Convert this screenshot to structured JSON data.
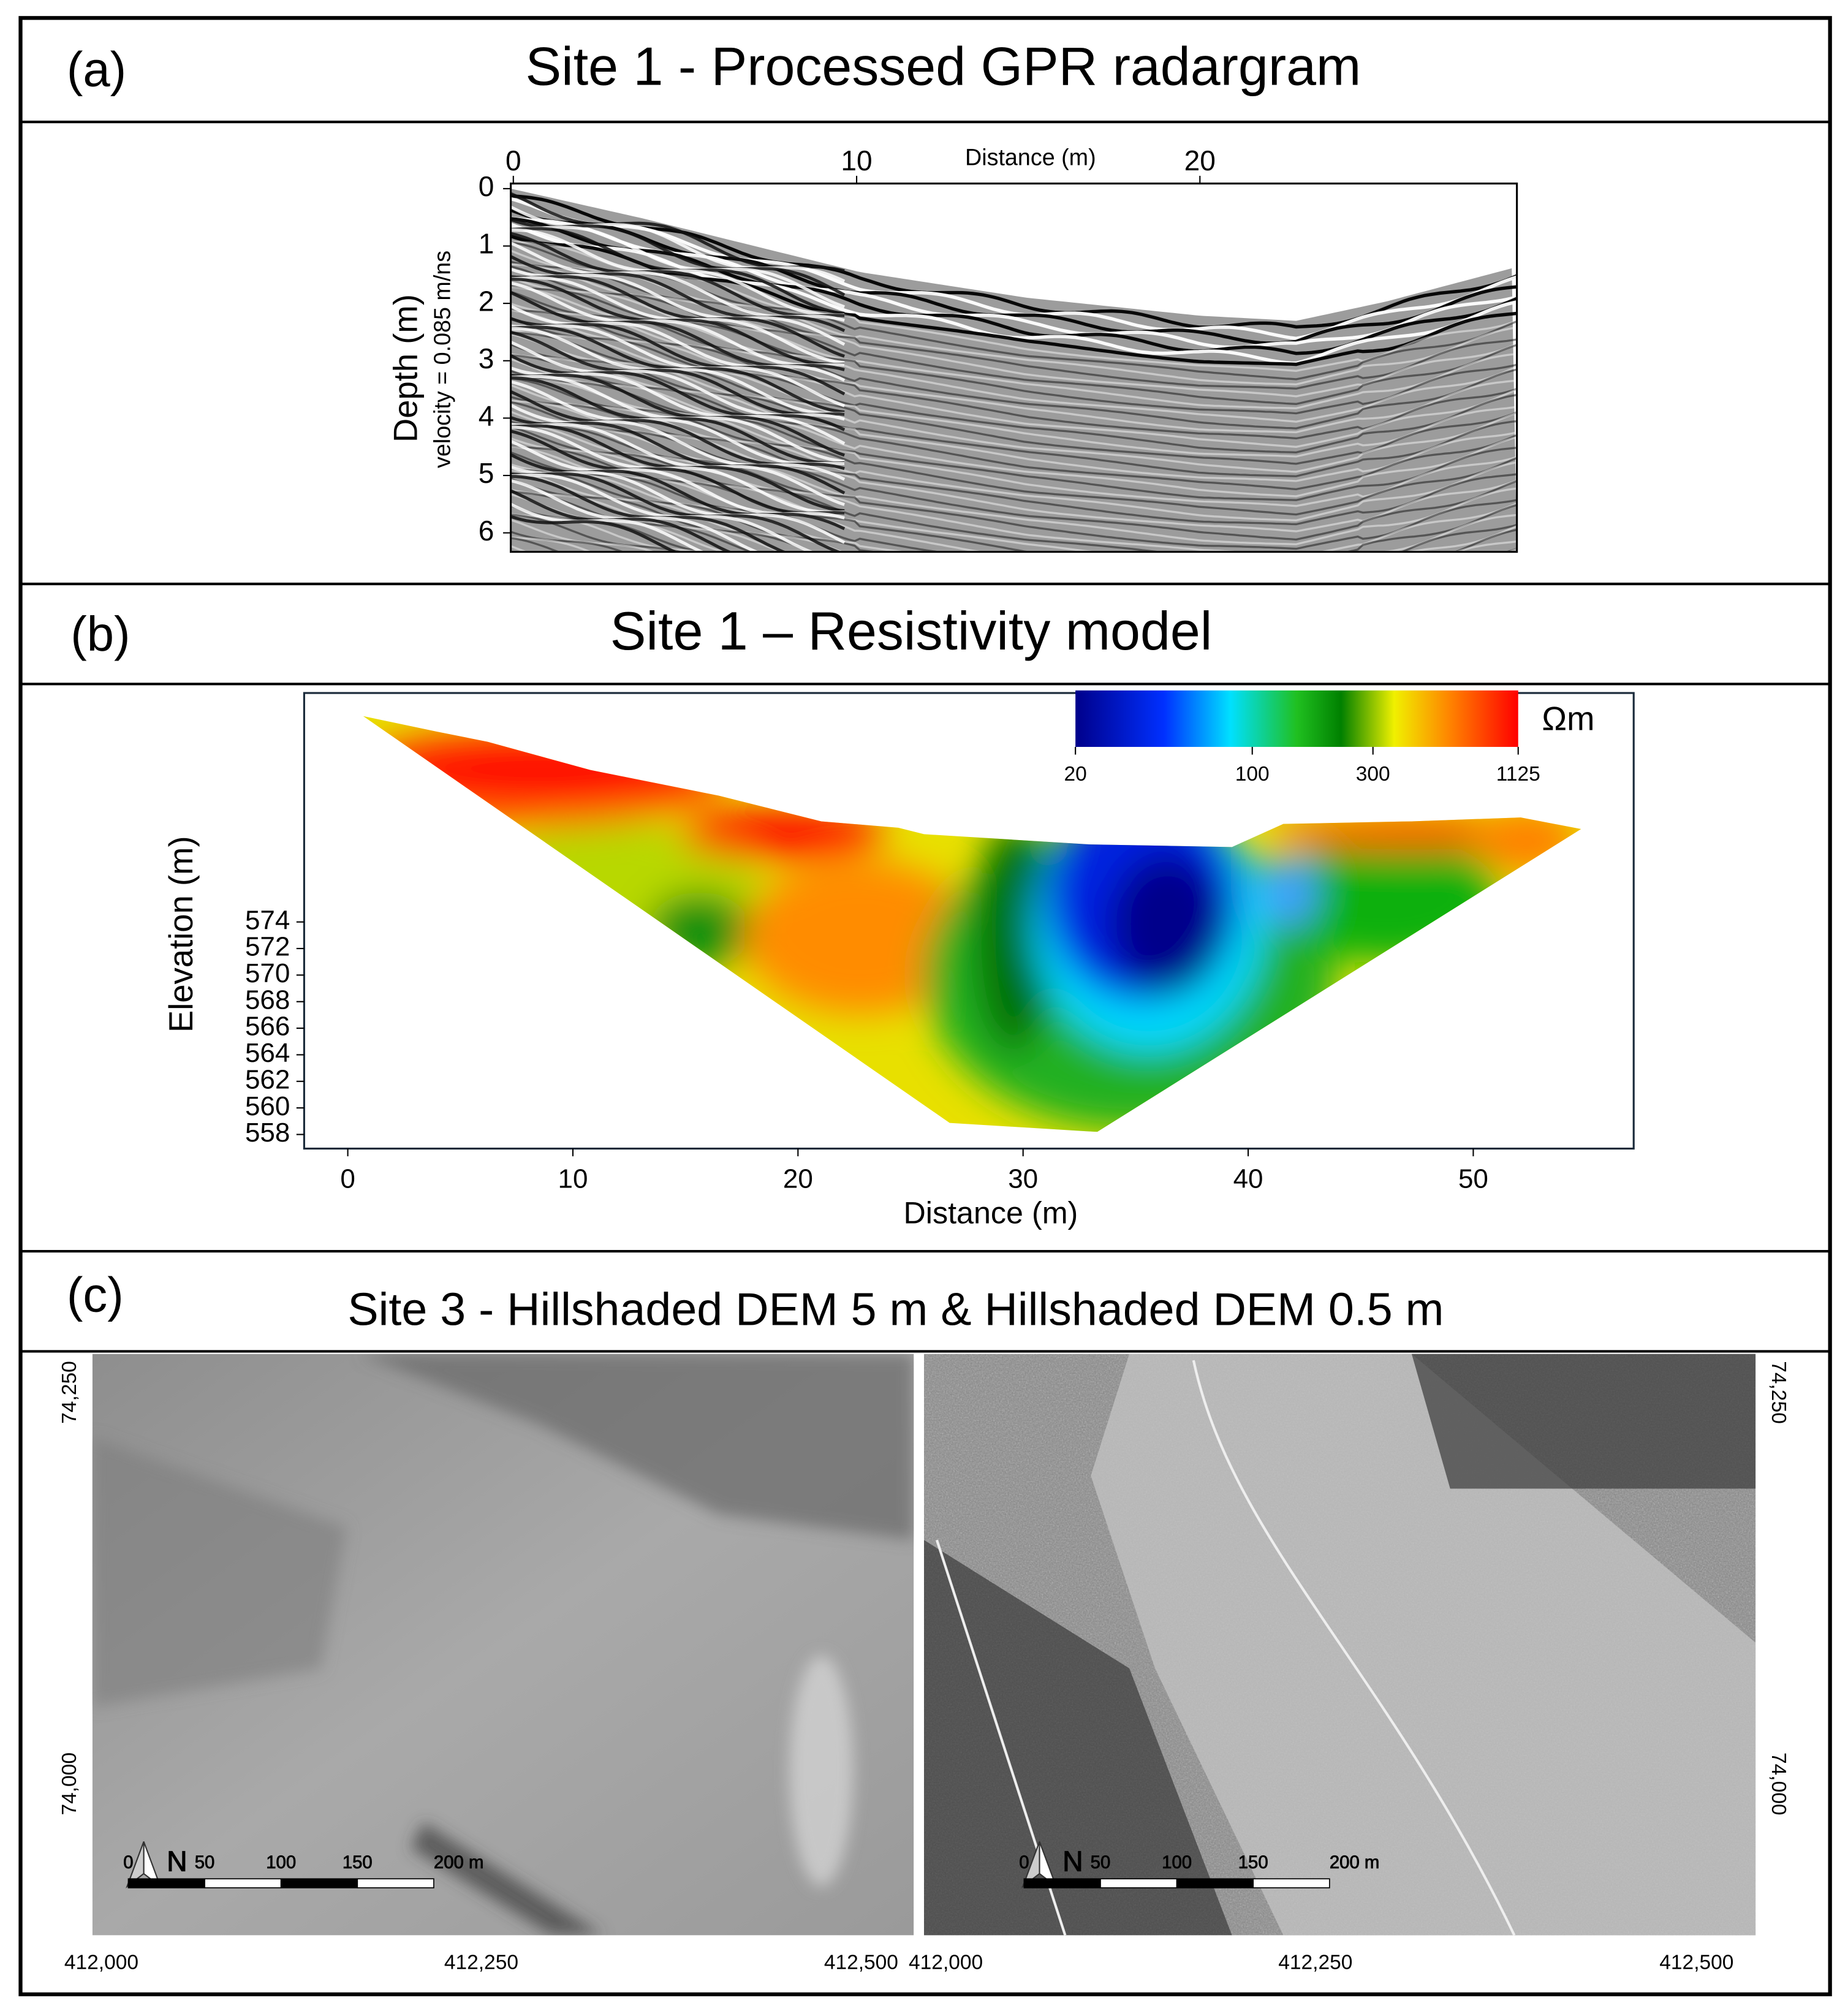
{
  "panels": [
    {
      "label": "(a)",
      "title": "Site 1 - Processed GPR radargram",
      "x_axis": {
        "label": "Distance (m)",
        "ticks": [
          0,
          10,
          20
        ]
      },
      "y_axis": {
        "label": "Depth (m)",
        "sublabel": "velocity = 0.085 m/ns",
        "ticks": [
          0,
          1,
          2,
          3,
          4,
          5,
          6
        ]
      }
    },
    {
      "label": "(b)",
      "title": "Site 1 – Resistivity model",
      "x_axis": {
        "label": "Distance (m)",
        "ticks": [
          0,
          10,
          20,
          30,
          40,
          50
        ]
      },
      "y_axis": {
        "label": "Elevation (m)",
        "ticks": [
          574,
          572,
          570,
          568,
          566,
          564,
          562,
          560,
          558
        ]
      },
      "colorbar": {
        "unit": "Ωm",
        "ticks": [
          20,
          100,
          300,
          1125
        ]
      }
    },
    {
      "label": "(c)",
      "title": "Site 3 - Hillshaded DEM 5 m & Hillshaded DEM 0.5 m",
      "maps": [
        {
          "x_ticks": [
            "412,000",
            "412,250",
            "412,500"
          ],
          "y_ticks": [
            "74,250",
            "74,000"
          ],
          "north": "N",
          "scale_ticks": [
            "0",
            "50",
            "100",
            "150",
            "200 m"
          ]
        },
        {
          "x_ticks": [
            "412,000",
            "412,250",
            "412,500"
          ],
          "y_ticks": [
            "74,250",
            "74,000"
          ],
          "north": "N",
          "scale_ticks": [
            "0",
            "50",
            "100",
            "150",
            "200 m"
          ]
        }
      ]
    }
  ]
}
